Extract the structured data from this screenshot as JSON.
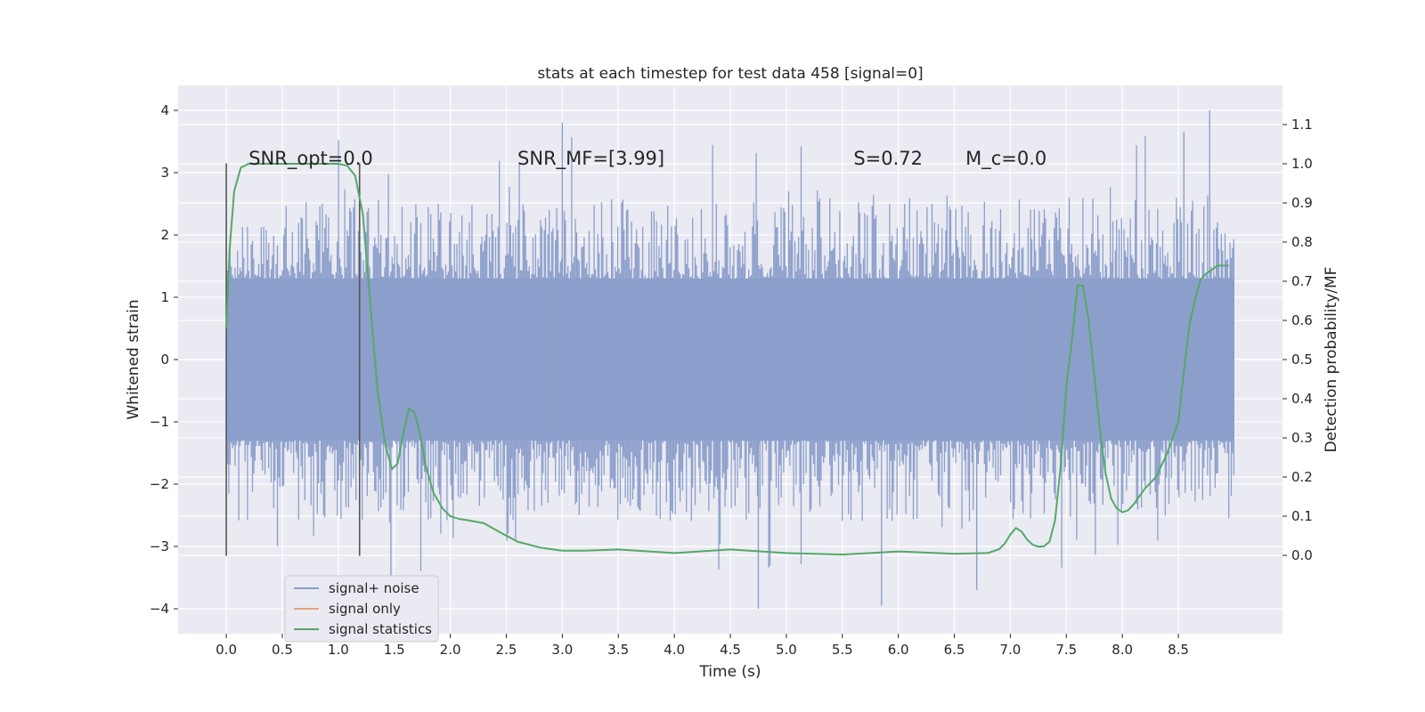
{
  "chart_data": {
    "type": "line",
    "title": "stats at each timestep for test data 458 [signal=0]",
    "xlabel": "Time (s)",
    "ylabel": "Whitened strain",
    "ylabel_right": "Detection probability/MF",
    "xlim": [
      -0.43,
      9.43
    ],
    "ylim": [
      -4.4,
      4.4
    ],
    "ylim_right": [
      -0.2,
      1.2
    ],
    "x_ticks": [
      0.0,
      0.5,
      1.0,
      1.5,
      2.0,
      2.5,
      3.0,
      3.5,
      4.0,
      4.5,
      5.0,
      5.5,
      6.0,
      6.5,
      7.0,
      7.5,
      8.0,
      8.5
    ],
    "x_tick_labels": [
      "0.0",
      "0.5",
      "1.0",
      "1.5",
      "2.0",
      "2.5",
      "3.0",
      "3.5",
      "4.0",
      "4.5",
      "5.0",
      "5.5",
      "6.0",
      "6.5",
      "7.0",
      "7.5",
      "8.0",
      "8.5"
    ],
    "y_ticks": [
      -4,
      -3,
      -2,
      -1,
      0,
      1,
      2,
      3,
      4
    ],
    "y_tick_labels": [
      "−4",
      "−3",
      "−2",
      "−1",
      "0",
      "1",
      "2",
      "3",
      "4"
    ],
    "y_ticks_right": [
      0.0,
      0.1,
      0.2,
      0.3,
      0.4,
      0.5,
      0.6,
      0.7,
      0.8,
      0.9,
      1.0,
      1.1
    ],
    "y_tick_labels_right": [
      "0.0",
      "0.1",
      "0.2",
      "0.3",
      "0.4",
      "0.5",
      "0.6",
      "0.7",
      "0.8",
      "0.9",
      "1.0",
      "1.1"
    ],
    "grid": true,
    "legend_position": "lower-left",
    "annotations": [
      {
        "id": "snr-opt",
        "text": "SNR_opt=0.0",
        "x": 0.2,
        "y_right": 1.0
      },
      {
        "id": "snr-mf",
        "text": "SNR_MF=[3.99]",
        "x": 2.6,
        "y_right": 1.0
      },
      {
        "id": "s-stat",
        "text": "S=0.72",
        "x": 5.6,
        "y_right": 1.0
      },
      {
        "id": "mc-stat",
        "text": "M_c=0.0",
        "x": 6.6,
        "y_right": 1.0
      }
    ],
    "vlines": [
      {
        "x": 0.0,
        "y0": -3.15,
        "y1": 3.15
      },
      {
        "x": 1.19,
        "y0": -3.15,
        "y1": 3.15
      }
    ],
    "series": [
      {
        "name": "signal+ noise",
        "color": "#8c9fcb",
        "axis": "left",
        "kind": "noise",
        "x_range": [
          0.0,
          9.0
        ],
        "envelope": 1.3,
        "peak_max": 4.0,
        "peak_min": -4.0
      },
      {
        "name": "signal only",
        "color": "#e5a07f",
        "axis": "left",
        "x": [],
        "y": []
      },
      {
        "name": "signal statistics",
        "color": "#55a868",
        "axis": "right",
        "x": [
          0.0,
          0.03,
          0.07,
          0.13,
          0.2,
          0.3,
          0.5,
          0.7,
          0.9,
          1.0,
          1.08,
          1.15,
          1.22,
          1.28,
          1.35,
          1.42,
          1.48,
          1.53,
          1.58,
          1.63,
          1.68,
          1.73,
          1.78,
          1.85,
          1.93,
          2.0,
          2.08,
          2.15,
          2.3,
          2.45,
          2.6,
          2.8,
          3.0,
          3.2,
          3.5,
          4.0,
          4.5,
          5.0,
          5.5,
          6.0,
          6.5,
          6.8,
          6.9,
          6.95,
          7.0,
          7.05,
          7.1,
          7.15,
          7.2,
          7.25,
          7.3,
          7.35,
          7.4,
          7.45,
          7.5,
          7.55,
          7.6,
          7.65,
          7.7,
          7.75,
          7.8,
          7.85,
          7.9,
          7.95,
          8.0,
          8.05,
          8.1,
          8.15,
          8.2,
          8.3,
          8.4,
          8.5,
          8.55,
          8.6,
          8.65,
          8.7,
          8.75,
          8.8,
          8.85,
          8.9,
          8.95
        ],
        "y": [
          0.58,
          0.78,
          0.93,
          0.99,
          1.0,
          1.0,
          1.0,
          1.0,
          1.0,
          1.0,
          0.995,
          0.97,
          0.87,
          0.66,
          0.42,
          0.28,
          0.22,
          0.235,
          0.31,
          0.375,
          0.365,
          0.31,
          0.23,
          0.16,
          0.12,
          0.1,
          0.093,
          0.09,
          0.082,
          0.058,
          0.035,
          0.02,
          0.012,
          0.012,
          0.015,
          0.006,
          0.015,
          0.006,
          0.002,
          0.01,
          0.004,
          0.006,
          0.016,
          0.03,
          0.053,
          0.07,
          0.061,
          0.04,
          0.027,
          0.022,
          0.023,
          0.035,
          0.09,
          0.23,
          0.43,
          0.55,
          0.69,
          0.688,
          0.6,
          0.46,
          0.32,
          0.21,
          0.145,
          0.12,
          0.11,
          0.115,
          0.13,
          0.15,
          0.17,
          0.2,
          0.26,
          0.34,
          0.47,
          0.59,
          0.655,
          0.705,
          0.72,
          0.73,
          0.74,
          0.74,
          0.74
        ]
      }
    ]
  }
}
